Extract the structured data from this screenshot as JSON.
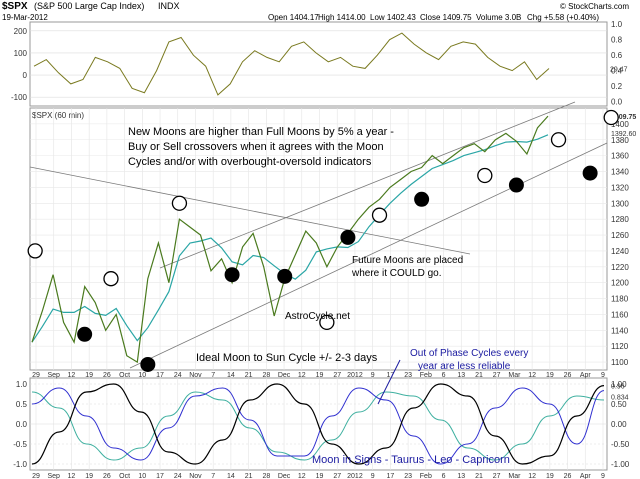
{
  "header": {
    "symbol": "$SPX",
    "name": "(S&P 500 Large Cap Index)",
    "exchange": "INDX",
    "watermark": "© StockCharts.com",
    "date": "19-Mar-2012",
    "open": "Open 1404.17",
    "high": "High 1414.00",
    "low": "Low 1402.43",
    "close": "Close 1409.75",
    "volume": "Volume 3.0B",
    "chg": "Chg +5.58 (+0.40%)"
  },
  "annotations": {
    "main_text_line1": "New Moons are higher than Full Moons by 5% a year -",
    "main_text_line2": "Buy or Sell crossovers when it agrees with the Moon",
    "main_text_line3": "Cycles and/or with overbought-oversold indicators",
    "future_line1": "Future Moons are placed",
    "future_line2": "where it COULD go.",
    "site": "AstroCycle.net",
    "ideal": "Ideal Moon to Sun Cycle  +/- 2-3 days",
    "phase_line1": "Out of Phase Cycles every",
    "phase_line2": "year are less reliable",
    "signs": "Moon in Signs - Taurus - Leo - Capricorn",
    "main_label": "$SPX (60 min)"
  },
  "colors": {
    "price": "#4a7a1e",
    "ma": "#2aa6a6",
    "osc_top": "#7a7a20",
    "black_wave": "#000000",
    "blue_wave": "#3030d0",
    "teal_wave": "#3fb0a0",
    "trend": "#7a7a7a"
  },
  "axis": {
    "top_panel_ticks": [
      "200",
      "100",
      "0",
      "-100"
    ],
    "top_panel_right_ticks": [
      "1.0",
      "0.8",
      "0.6",
      "0.4",
      "0.2",
      "0.0"
    ],
    "top_panel_value": "29.47",
    "main_right_ticks": [
      "1400",
      "1380",
      "1360",
      "1340",
      "1320",
      "1300",
      "1280",
      "1260",
      "1240",
      "1220",
      "1200",
      "1180",
      "1160",
      "1140",
      "1120",
      "1100"
    ],
    "main_value_1": "1409.75",
    "main_value_2": "1392.60",
    "bottom_right_ticks": [
      "1.00",
      "0.50",
      "0.00",
      "-0.50",
      "-1.00"
    ],
    "bottom_value_1": "0.96",
    "bottom_value_2": "0.834",
    "bottom_left_ticks": [
      "1.0",
      "0.5",
      "0.0",
      "-0.5",
      "-1.0"
    ],
    "x_labels": [
      "29",
      "Sep",
      "12",
      "19",
      "26",
      "Oct",
      "10",
      "17",
      "24",
      "Nov",
      "7",
      "14",
      "21",
      "28",
      "Dec",
      "12",
      "19",
      "27",
      "2012",
      "9",
      "17",
      "23",
      "Feb",
      "6",
      "13",
      "21",
      "27",
      "Mar",
      "12",
      "19",
      "26",
      "Apr",
      "9"
    ]
  },
  "chart_data": [
    {
      "type": "line",
      "title": "",
      "series": [
        {
          "values": [
            40,
            70,
            10,
            -40,
            -20,
            80,
            60,
            30,
            -60,
            -80,
            20,
            150,
            170,
            90,
            40,
            -90,
            -40,
            60,
            110,
            80,
            60,
            130,
            150,
            100,
            60,
            80,
            40,
            30,
            90,
            160,
            190,
            140,
            100,
            70,
            130,
            150,
            140,
            80,
            40,
            20,
            60,
            -20,
            29.47
          ]
        }
      ],
      "ylim": [
        -140,
        240
      ]
    },
    {
      "type": "line",
      "title": "",
      "series": [
        {
          "values": [
            1125,
            1165,
            1210,
            1150,
            1125,
            1195,
            1175,
            1140,
            1160,
            1108,
            1100,
            1205,
            1250,
            1200,
            1280,
            1270,
            1260,
            1215,
            1230,
            1200,
            1245,
            1262,
            1220,
            1158,
            1205,
            1235,
            1265,
            1250,
            1220,
            1245,
            1262,
            1280,
            1295,
            1305,
            1320,
            1330,
            1340,
            1345,
            1360,
            1350,
            1360,
            1370,
            1375,
            1365,
            1380,
            1388,
            1378,
            1362,
            1395,
            1409.75
          ]
        }
      ],
      "moons_open": [
        [
          0.3,
          1240
        ],
        [
          7.5,
          1205
        ],
        [
          14,
          1300
        ],
        [
          28,
          1150
        ],
        [
          33,
          1285
        ],
        [
          43,
          1335
        ],
        [
          50,
          1380
        ],
        [
          55,
          1408
        ]
      ],
      "moons_filled": [
        [
          5,
          1135
        ],
        [
          11,
          1097
        ],
        [
          19,
          1210
        ],
        [
          24,
          1208
        ],
        [
          30,
          1257
        ],
        [
          37,
          1305
        ],
        [
          46,
          1323
        ],
        [
          53,
          1338
        ]
      ],
      "ylim": [
        1090,
        1420
      ]
    },
    {
      "type": "line",
      "title": "",
      "series": [
        {
          "values": [
            -1,
            -0.2,
            0.8,
            1,
            0.3,
            -0.7,
            -1,
            -0.4,
            0.6,
            1,
            0.5,
            -0.5,
            -1,
            -0.6,
            0.4,
            1,
            0.7,
            -0.3,
            -1,
            -0.8,
            0.2,
            0.96
          ]
        },
        {
          "values": [
            0.5,
            0.9,
            0.2,
            -0.6,
            -0.9,
            -0.1,
            0.7,
            0.9,
            0.1,
            -0.8,
            -0.8,
            0.2,
            0.9,
            0.6,
            -0.3,
            -1,
            -0.5,
            0.4,
            0.9,
            0.5,
            -0.5,
            0.834
          ]
        },
        {
          "values": [
            0.8,
            0.4,
            -0.5,
            -0.9,
            -0.6,
            0.2,
            0.8,
            0.6,
            -0.1,
            -0.7,
            -0.9,
            -0.4,
            0.3,
            0.8,
            0.7,
            0.1,
            -0.6,
            -0.9,
            -0.5,
            0.2,
            0.7,
            0.6
          ]
        }
      ],
      "ylim": [
        -1,
        1
      ]
    }
  ]
}
